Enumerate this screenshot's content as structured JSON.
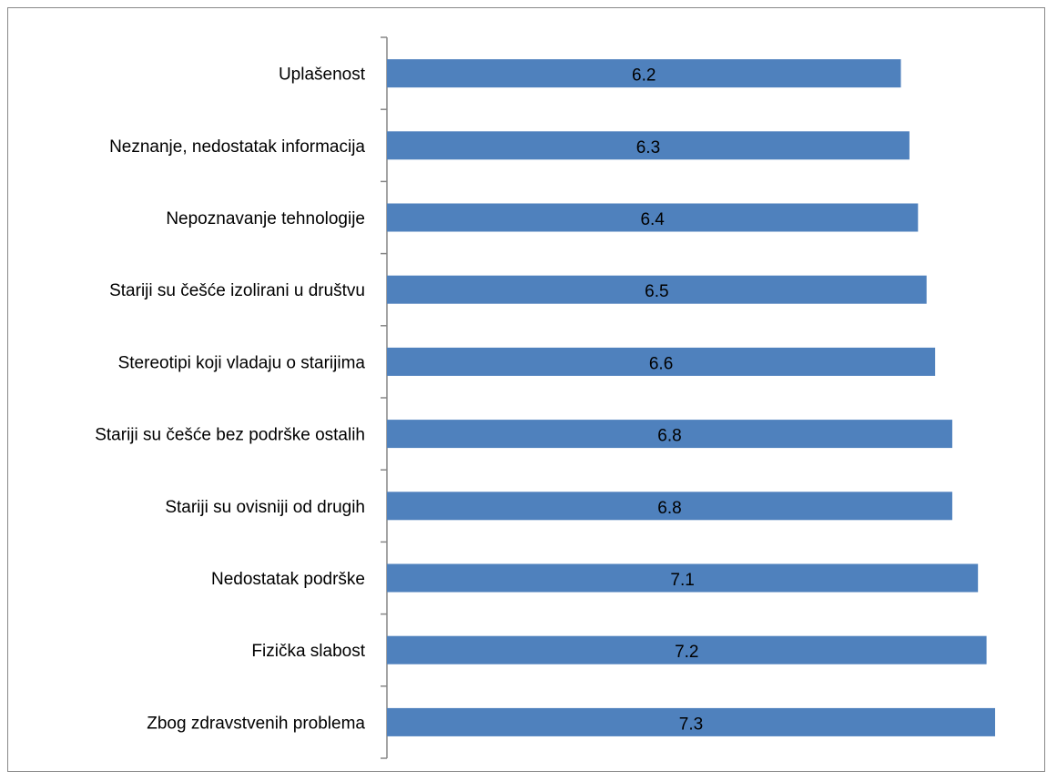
{
  "chart_data": {
    "type": "bar",
    "orientation": "horizontal",
    "categories": [
      "Uplašenost",
      "Neznanje, nedostatak informacija",
      "Nepoznavanje tehnologije",
      "Stariji su češće izolirani u društvu",
      "Stereotipi koji vladaju o starijima",
      "Stariji su češće bez podrške ostalih",
      "Stariji su ovisniji od drugih",
      "Nedostatak podrške",
      "Fizička slabost",
      "Zbog zdravstvenih problema"
    ],
    "values": [
      6.2,
      6.3,
      6.4,
      6.5,
      6.6,
      6.8,
      6.8,
      7.1,
      7.2,
      7.3
    ],
    "value_labels": [
      "6.2",
      "6.3",
      "6.4",
      "6.5",
      "6.6",
      "6.8",
      "6.8",
      "7.1",
      "7.2",
      "7.3"
    ],
    "xlim": [
      0.2,
      7.3
    ],
    "bar_color": "#4f81bd",
    "axis_color": "#868686",
    "grid": false,
    "legend": "none",
    "title": "",
    "xlabel": "",
    "ylabel": ""
  }
}
